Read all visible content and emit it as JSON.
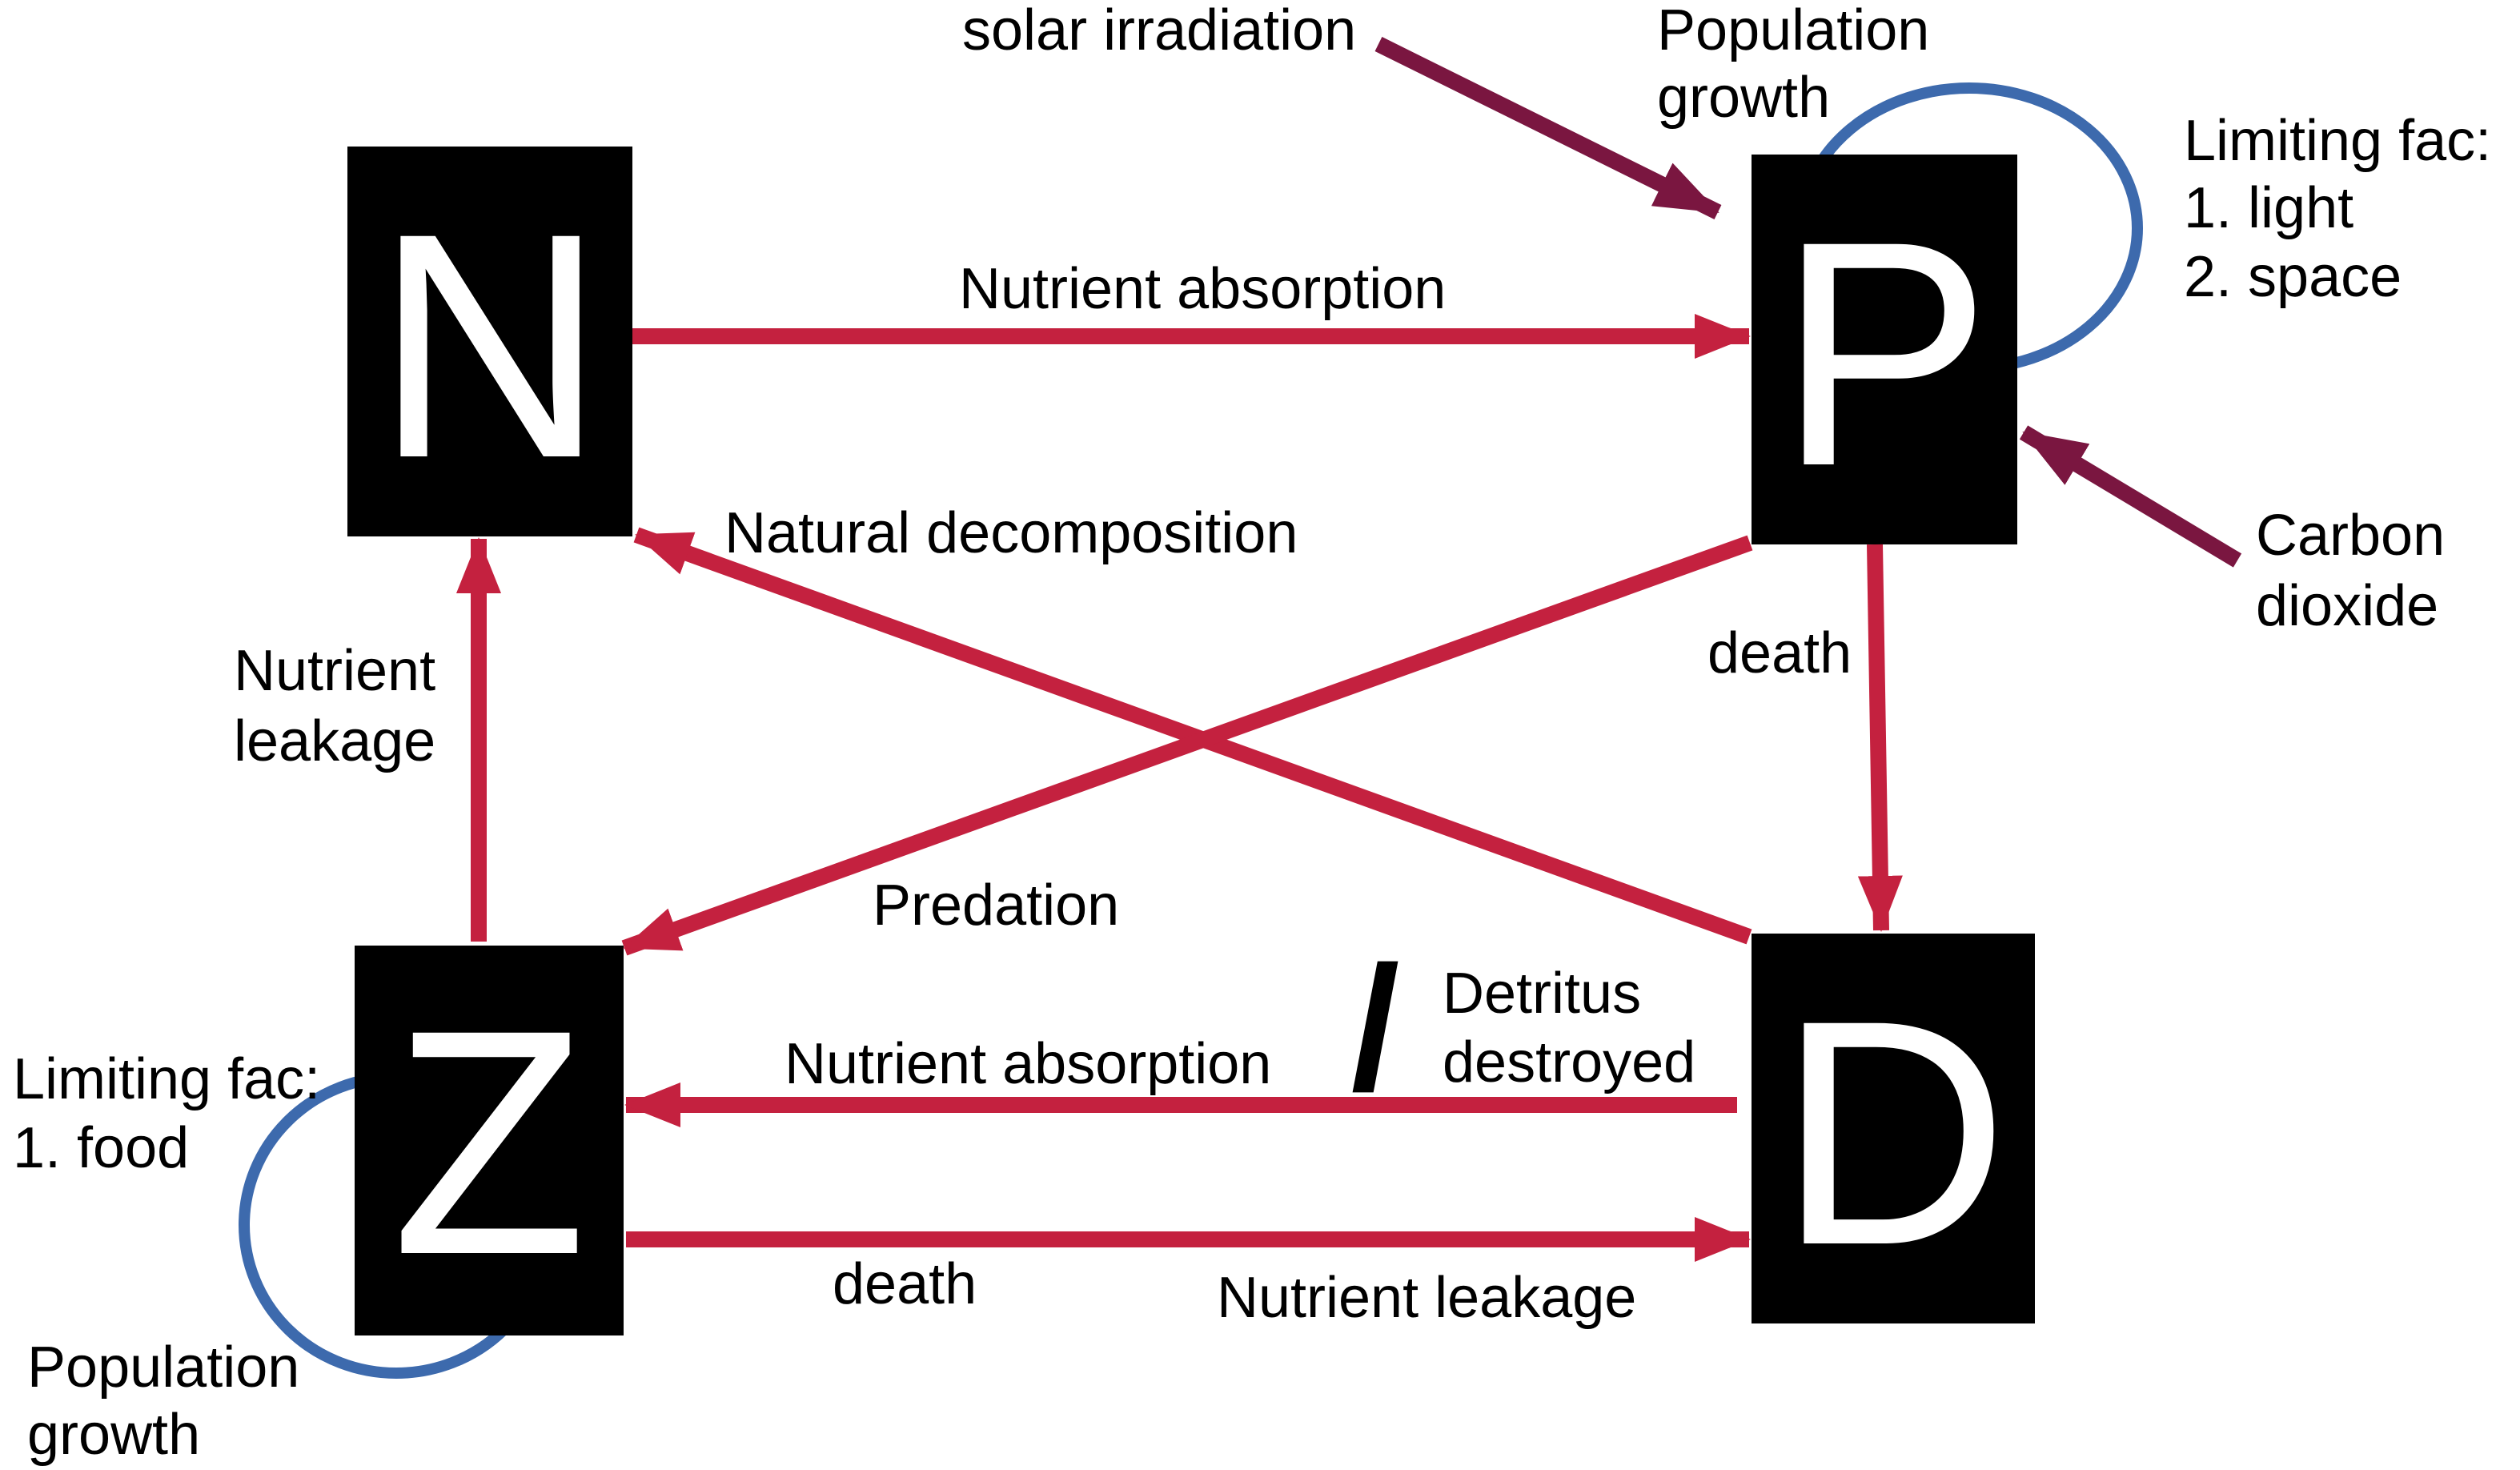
{
  "colors": {
    "flow_arrow": "#c4213f",
    "external_arrow": "#7a1640",
    "self_loop": "#3d6aad",
    "box_fill": "#000000",
    "box_text": "#ffffff",
    "label_text": "#000000"
  },
  "boxes": {
    "n": {
      "letter": "N"
    },
    "p": {
      "letter": "P"
    },
    "z": {
      "letter": "Z"
    },
    "d": {
      "letter": "D"
    }
  },
  "labels": {
    "solar_irradiation": "solar irradiation",
    "p_population_growth": [
      "Population",
      "growth"
    ],
    "p_limiting": [
      "Limiting fac:",
      "1. light",
      "2. space"
    ],
    "carbon_dioxide": [
      "Carbon",
      "dioxide"
    ],
    "nutrient_absorption_np": "Nutrient absorption",
    "natural_decomposition": "Natural decomposition",
    "p_death": "death",
    "nutrient_leakage_zn": [
      "Nutrient",
      "leakage"
    ],
    "predation": "Predation",
    "slash": "/",
    "detritus_destroyed": [
      "Detritus",
      "destroyed"
    ],
    "nutrient_absorption_dz": "Nutrient absorption",
    "z_limiting": [
      "Limiting fac:",
      "1. food"
    ],
    "z_death": "death",
    "nutrient_leakage_zd": "Nutrient leakage",
    "z_population_growth": [
      "Population",
      "growth"
    ]
  }
}
